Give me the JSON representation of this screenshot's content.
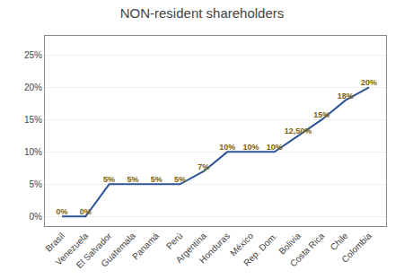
{
  "chart_data": {
    "type": "line",
    "title": "NON-resident shareholders",
    "categories": [
      "Brasil",
      "Venezuela",
      "El Salvador",
      "Guatemala",
      "Panamá",
      "Perú",
      "Argentina",
      "Honduras",
      "México",
      "Rep. Dom.",
      "Bolivia",
      "Costa Rica",
      "Chile",
      "Colombia"
    ],
    "values": [
      0,
      0,
      5,
      5,
      5,
      5,
      7,
      10,
      10,
      10,
      12.5,
      15,
      18,
      20
    ],
    "value_labels": [
      "0%",
      "0%",
      "5%",
      "5%",
      "5%",
      "5%",
      "7%",
      "10%",
      "10%",
      "10%",
      "12,50%",
      "15%",
      "18%",
      "20%"
    ],
    "color": "#2F5496",
    "ylim": [
      -1.5,
      28
    ],
    "yticks": [
      {
        "value": 0,
        "label": "0%"
      },
      {
        "value": 5,
        "label": "5%"
      },
      {
        "value": 10,
        "label": "10%"
      },
      {
        "value": 15,
        "label": "15%"
      },
      {
        "value": 20,
        "label": "20%"
      },
      {
        "value": 25,
        "label": "25%"
      }
    ],
    "grid": true,
    "data_labels": true
  }
}
